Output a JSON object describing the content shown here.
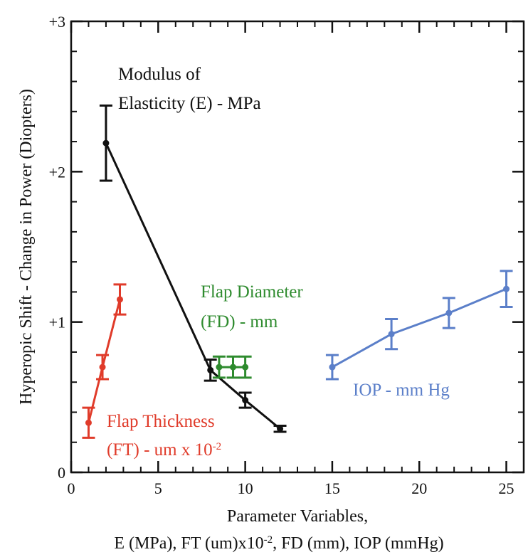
{
  "chart_data": {
    "type": "line",
    "title": "",
    "xlabel_line1": "Parameter Variables,",
    "xlabel_line2": "E (MPa), FT (um)x10",
    "xlabel_line2_sup": "-2",
    "xlabel_line2_rest": ", FD (mm), IOP (mmHg)",
    "ylabel": "Hyperopic Shift - Change in Power (Diopters)",
    "xlim": [
      0,
      26
    ],
    "ylim": [
      0,
      3
    ],
    "x_ticks": [
      "0",
      "5",
      "10",
      "15",
      "20",
      "25"
    ],
    "y_ticks": [
      "0",
      "+1",
      "+2",
      "+3"
    ],
    "grid": false,
    "series": [
      {
        "name": "Modulus of Elasticity (E) - MPa",
        "label_lines": [
          "Modulus of",
          "Elasticity (E) - MPa"
        ],
        "color": "#111111",
        "x": [
          2,
          8,
          10,
          12
        ],
        "y": [
          2.19,
          0.68,
          0.48,
          0.29
        ],
        "err": [
          0.25,
          0.07,
          0.05,
          0.02
        ]
      },
      {
        "name": "Flap Thickness (FT) - um x 10-2",
        "label_lines": [
          "Flap Thickness",
          "(FT) - um x 10"
        ],
        "label_sup": "-2",
        "color": "#e03b2a",
        "x": [
          1.0,
          1.8,
          2.8
        ],
        "y": [
          0.33,
          0.7,
          1.15
        ],
        "err": [
          0.1,
          0.08,
          0.1
        ]
      },
      {
        "name": "Flap Diameter (FD) - mm",
        "label_lines": [
          "Flap Diameter",
          "(FD) - mm"
        ],
        "color": "#2e8b2e",
        "x": [
          8.5,
          9.3,
          10.0
        ],
        "y": [
          0.7,
          0.7,
          0.7
        ],
        "err": [
          0.07,
          0.07,
          0.07
        ]
      },
      {
        "name": "IOP - mm Hg",
        "label_lines": [
          "IOP - mm Hg"
        ],
        "color": "#5b7fc9",
        "x": [
          15.0,
          18.4,
          21.7,
          25.0
        ],
        "y": [
          0.7,
          0.92,
          1.06,
          1.22
        ],
        "err": [
          0.08,
          0.1,
          0.1,
          0.12
        ]
      }
    ]
  }
}
